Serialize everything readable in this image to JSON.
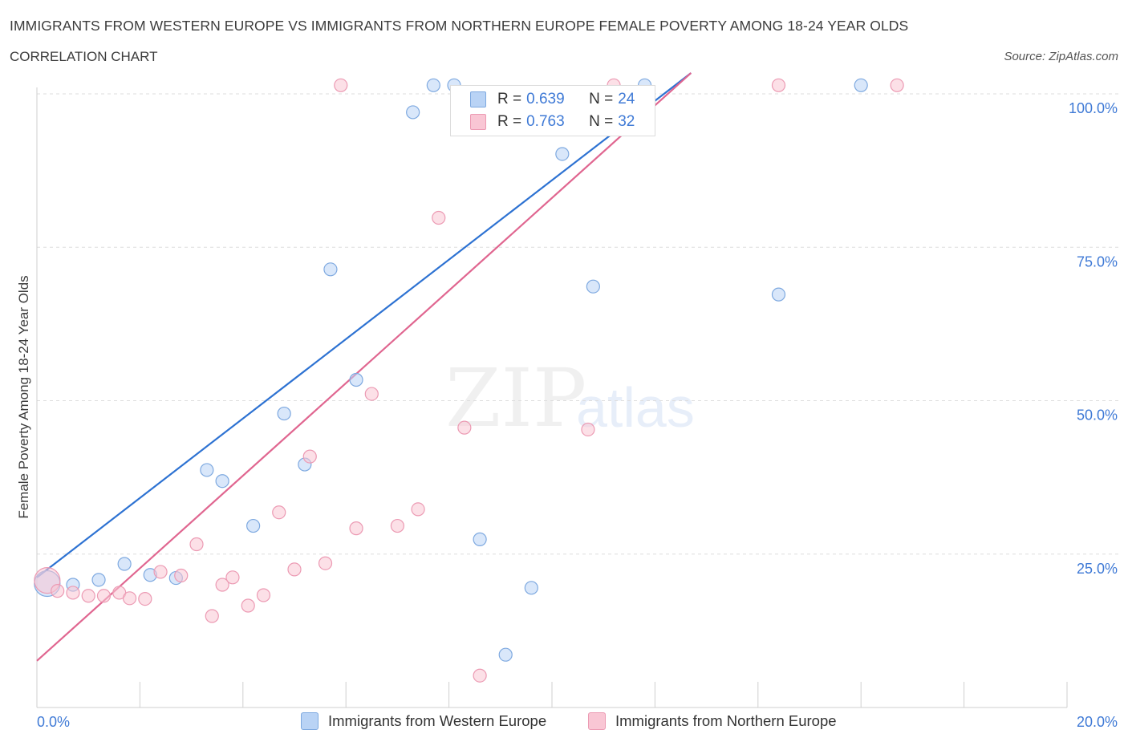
{
  "header": {
    "title": "IMMIGRANTS FROM WESTERN EUROPE VS IMMIGRANTS FROM NORTHERN EUROPE FEMALE POVERTY AMONG 18-24 YEAR OLDS",
    "subtitle": "CORRELATION CHART",
    "source": "Source: ZipAtlas.com"
  },
  "watermark": {
    "zip": "ZIP",
    "atlas": "atlas"
  },
  "legend_top": {
    "rows": [
      {
        "r_label": "R =",
        "r_value": "0.639",
        "n_label": "N =",
        "n_value": "24"
      },
      {
        "r_label": "R =",
        "r_value": "0.763",
        "n_label": "N =",
        "n_value": "32"
      }
    ]
  },
  "legend_bottom": {
    "western": "Immigrants from Western Europe",
    "northern": "Immigrants from Northern Europe"
  },
  "colors": {
    "western_fill": "#b9d3f5",
    "western_stroke": "#7ea9e0",
    "western_line": "#2d72d2",
    "northern_fill": "#f9c6d4",
    "northern_stroke": "#ec9ab3",
    "northern_line": "#e06690",
    "accent_text": "#3f7ad6"
  },
  "chart_data": {
    "type": "scatter",
    "title": "IMMIGRANTS FROM WESTERN EUROPE VS IMMIGRANTS FROM NORTHERN EUROPE FEMALE POVERTY AMONG 18-24 YEAR OLDS",
    "xlabel": "",
    "ylabel": "Female Poverty Among 18-24 Year Olds",
    "xlim": [
      0,
      20
    ],
    "ylim": [
      0,
      100
    ],
    "x_tick_labels": [
      "0.0%",
      "20.0%"
    ],
    "y_ticks": [
      25,
      50,
      75,
      100
    ],
    "y_tick_labels": [
      "25.0%",
      "50.0%",
      "75.0%",
      "100.0%"
    ],
    "series": [
      {
        "name": "Immigrants from Western Europe",
        "R": 0.639,
        "N": 24,
        "trend": {
          "x": [
            0.0,
            12.7
          ],
          "y": [
            21.2,
            103.4
          ]
        },
        "points": [
          {
            "x": 0.2,
            "y": 20.2,
            "big": true
          },
          {
            "x": 0.7,
            "y": 20.0
          },
          {
            "x": 1.2,
            "y": 20.8
          },
          {
            "x": 1.7,
            "y": 23.4
          },
          {
            "x": 2.2,
            "y": 21.6
          },
          {
            "x": 2.7,
            "y": 21.1
          },
          {
            "x": 3.3,
            "y": 38.7
          },
          {
            "x": 3.6,
            "y": 36.9
          },
          {
            "x": 4.2,
            "y": 29.6
          },
          {
            "x": 4.8,
            "y": 47.9
          },
          {
            "x": 5.2,
            "y": 39.6
          },
          {
            "x": 5.7,
            "y": 71.4
          },
          {
            "x": 6.2,
            "y": 53.4
          },
          {
            "x": 7.3,
            "y": 97.0
          },
          {
            "x": 7.7,
            "y": 101.4
          },
          {
            "x": 8.1,
            "y": 101.4
          },
          {
            "x": 8.6,
            "y": 27.4
          },
          {
            "x": 9.1,
            "y": 8.6
          },
          {
            "x": 9.6,
            "y": 19.5
          },
          {
            "x": 10.2,
            "y": 90.2
          },
          {
            "x": 10.8,
            "y": 68.6
          },
          {
            "x": 11.8,
            "y": 101.4
          },
          {
            "x": 14.4,
            "y": 67.3
          },
          {
            "x": 16.0,
            "y": 101.4
          }
        ]
      },
      {
        "name": "Immigrants from Northern Europe",
        "R": 0.763,
        "N": 32,
        "trend": {
          "x": [
            0.0,
            12.7
          ],
          "y": [
            7.6,
            103.4
          ]
        },
        "points": [
          {
            "x": 0.2,
            "y": 20.7,
            "big": true
          },
          {
            "x": 0.4,
            "y": 19.0
          },
          {
            "x": 0.7,
            "y": 18.7
          },
          {
            "x": 1.0,
            "y": 18.2
          },
          {
            "x": 1.3,
            "y": 18.2
          },
          {
            "x": 1.6,
            "y": 18.7
          },
          {
            "x": 1.8,
            "y": 17.8
          },
          {
            "x": 2.1,
            "y": 17.7
          },
          {
            "x": 2.4,
            "y": 22.1
          },
          {
            "x": 2.8,
            "y": 21.5
          },
          {
            "x": 3.1,
            "y": 26.6
          },
          {
            "x": 3.4,
            "y": 14.9
          },
          {
            "x": 3.6,
            "y": 20.0
          },
          {
            "x": 3.8,
            "y": 21.2
          },
          {
            "x": 4.1,
            "y": 16.6
          },
          {
            "x": 4.4,
            "y": 18.3
          },
          {
            "x": 4.7,
            "y": 31.8
          },
          {
            "x": 5.0,
            "y": 22.5
          },
          {
            "x": 5.3,
            "y": 40.9
          },
          {
            "x": 5.6,
            "y": 23.5
          },
          {
            "x": 5.9,
            "y": 101.4
          },
          {
            "x": 6.2,
            "y": 29.2
          },
          {
            "x": 6.5,
            "y": 51.1
          },
          {
            "x": 7.0,
            "y": 29.6
          },
          {
            "x": 7.4,
            "y": 32.3
          },
          {
            "x": 7.8,
            "y": 79.8
          },
          {
            "x": 8.3,
            "y": 45.6
          },
          {
            "x": 8.6,
            "y": 5.2
          },
          {
            "x": 10.7,
            "y": 45.3
          },
          {
            "x": 11.2,
            "y": 101.4
          },
          {
            "x": 14.4,
            "y": 101.4
          },
          {
            "x": 16.7,
            "y": 101.4
          }
        ]
      }
    ]
  }
}
